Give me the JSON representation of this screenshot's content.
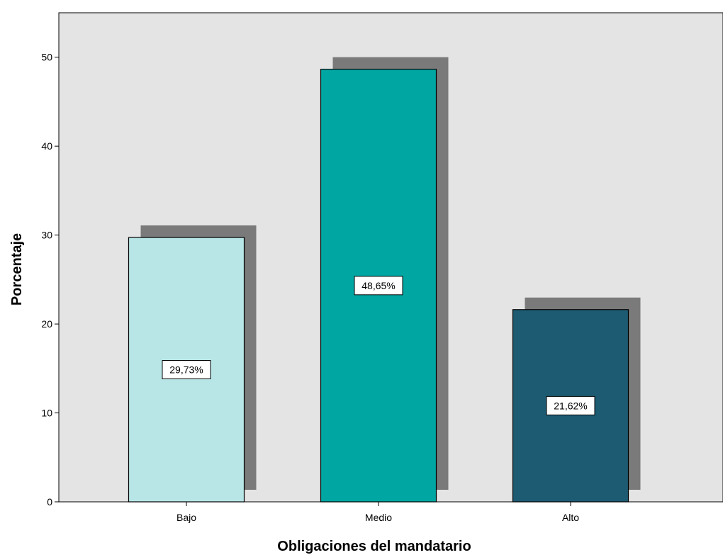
{
  "chart_data": {
    "type": "bar",
    "categories": [
      "Bajo",
      "Medio",
      "Alto"
    ],
    "values": [
      29.73,
      48.65,
      21.62
    ],
    "data_labels": [
      "29,73%",
      "48,65%",
      "21,62%"
    ],
    "xlabel": "Obligaciones del mandatario",
    "ylabel": "Porcentaje",
    "ylim": [
      0,
      55
    ],
    "yticks": [
      0,
      10,
      20,
      30,
      40,
      50
    ],
    "grid": false,
    "bar_shadow": true,
    "colors": {
      "plot_background": "#e4e4e4",
      "shadow": "#7a7a7a",
      "bars": [
        "#b8e6e7",
        "#00a6a2",
        "#1d5b72"
      ]
    }
  }
}
